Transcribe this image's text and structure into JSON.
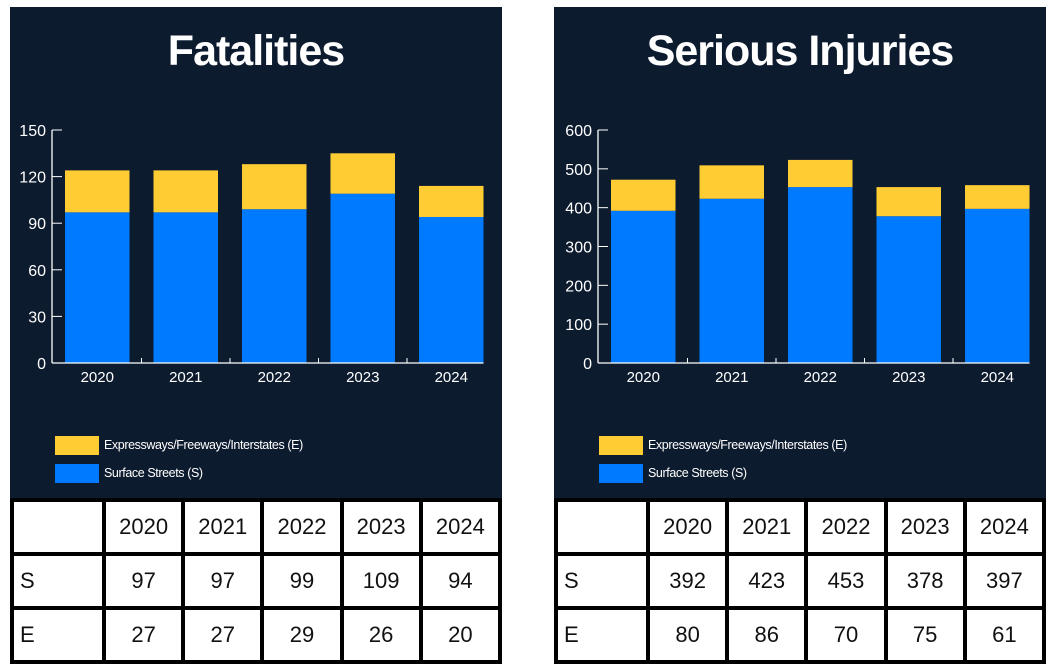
{
  "colors": {
    "background": "#0d1b2f",
    "expressways": "#ffcc33",
    "surface": "#007bff"
  },
  "chart_data": [
    {
      "type": "bar",
      "stacked": true,
      "title": "Fatalities",
      "categories": [
        "2020",
        "2021",
        "2022",
        "2023",
        "2024"
      ],
      "series": [
        {
          "name": "Surface Streets (S)",
          "values": [
            97,
            97,
            99,
            109,
            94
          ]
        },
        {
          "name": "Expressways/Freeways/Interstates (E)",
          "values": [
            27,
            27,
            29,
            26,
            20
          ]
        }
      ],
      "ylim": [
        0,
        150
      ],
      "yticks": [
        "0",
        "30",
        "60",
        "90",
        "120",
        "150"
      ],
      "legend": "bottom-left",
      "grid": false,
      "table": {
        "header": [
          "",
          "2020",
          "2021",
          "2022",
          "2023",
          "2024"
        ],
        "rows": [
          [
            "S",
            "97",
            "97",
            "99",
            "109",
            "94"
          ],
          [
            "E",
            "27",
            "27",
            "29",
            "26",
            "20"
          ]
        ]
      }
    },
    {
      "type": "bar",
      "stacked": true,
      "title": "Serious Injuries",
      "categories": [
        "2020",
        "2021",
        "2022",
        "2023",
        "2024"
      ],
      "series": [
        {
          "name": "Surface Streets (S)",
          "values": [
            392,
            423,
            453,
            378,
            397
          ]
        },
        {
          "name": "Expressways/Freeways/Interstates (E)",
          "values": [
            80,
            86,
            70,
            75,
            61
          ]
        }
      ],
      "ylim": [
        0,
        600
      ],
      "yticks": [
        "0",
        "100",
        "200",
        "300",
        "400",
        "500",
        "600"
      ],
      "legend": "bottom-left",
      "grid": false,
      "table": {
        "header": [
          "",
          "2020",
          "2021",
          "2022",
          "2023",
          "2024"
        ],
        "rows": [
          [
            "S",
            "392",
            "423",
            "453",
            "378",
            "397"
          ],
          [
            "E",
            "80",
            "86",
            "70",
            "75",
            "61"
          ]
        ]
      }
    }
  ]
}
